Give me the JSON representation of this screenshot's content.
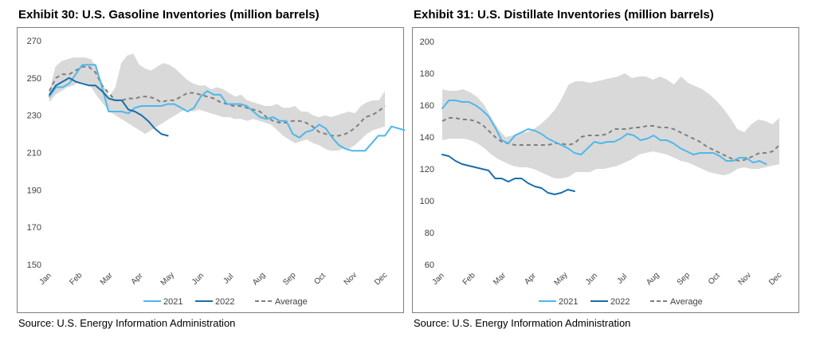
{
  "colors": {
    "series_2021": "#4db8ec",
    "series_2022": "#1a6ea8",
    "average": "#7f7f7f",
    "range_band": "#d9d9d9"
  },
  "exhibits": [
    {
      "title": "Exhibit 30: U.S. Gasoline Inventories (million barrels)",
      "source": "Source: U.S. Energy Information Administration"
    },
    {
      "title": "Exhibit 31: U.S. Distillate Inventories (million barrels)",
      "source": "Source: U.S. Energy Information Administration"
    }
  ],
  "chart_data": [
    {
      "type": "line",
      "title": "Exhibit 30: U.S. Gasoline Inventories (million barrels)",
      "x_categories": [
        "Jan",
        "Feb",
        "Mar",
        "Apr",
        "May",
        "Jun",
        "Jul",
        "Aug",
        "Sep",
        "Oct",
        "Nov",
        "Dec"
      ],
      "ylim": [
        150,
        270
      ],
      "yticks": [
        150,
        170,
        190,
        210,
        230,
        250,
        270
      ],
      "legend_position": "bottom",
      "grid": false,
      "band": {
        "upper": [
          243,
          256,
          259,
          260,
          261,
          261,
          261,
          260,
          254,
          246,
          240,
          245,
          258,
          262,
          263,
          257,
          255,
          254,
          256,
          258,
          257,
          255,
          252,
          249,
          247,
          246,
          246,
          244,
          245,
          244,
          242,
          240,
          241,
          238,
          237,
          236,
          235,
          235,
          236,
          234,
          234,
          235,
          232,
          232,
          230,
          229,
          230,
          229,
          230,
          231,
          232,
          231,
          235,
          237,
          238,
          238,
          243
        ],
        "lower": [
          237,
          241,
          243,
          245,
          246,
          248,
          247,
          245,
          240,
          236,
          232,
          230,
          228,
          226,
          224,
          222,
          220,
          222,
          224,
          226,
          228,
          230,
          232,
          233,
          232,
          233,
          232,
          231,
          230,
          229,
          229,
          228,
          228,
          227,
          228,
          227,
          226,
          225,
          222,
          219,
          217,
          215,
          216,
          217,
          215,
          214,
          212,
          211,
          211,
          212,
          212,
          214,
          217,
          220,
          222,
          223,
          224
        ]
      },
      "series": [
        {
          "name": "2021",
          "color": "#4db8ec",
          "start": 0,
          "values": [
            240,
            245,
            245,
            247,
            252,
            257,
            257,
            257,
            245,
            232,
            232,
            232,
            231,
            234,
            235,
            235,
            235,
            235,
            236,
            236,
            234,
            232,
            234,
            240,
            243,
            241,
            241,
            236,
            236,
            236,
            235,
            232,
            229,
            228,
            229,
            227,
            227,
            220,
            218,
            221,
            222,
            225,
            223,
            218,
            214,
            212,
            211,
            211,
            211,
            215,
            219,
            219,
            224,
            223,
            222
          ]
        },
        {
          "name": "2022",
          "color": "#1a6ea8",
          "start": 0,
          "values": [
            241,
            246,
            248,
            250,
            248,
            247,
            246,
            246,
            243,
            239,
            238,
            238,
            233,
            232,
            230,
            227,
            223,
            220,
            219
          ]
        },
        {
          "name": "Average",
          "color": "#7f7f7f",
          "dashed": true,
          "start": 0,
          "values": [
            243,
            250,
            252,
            252,
            254,
            256,
            256,
            253,
            246,
            242,
            238,
            238,
            239,
            239,
            240,
            240,
            239,
            237,
            238,
            238,
            240,
            242,
            242,
            241,
            240,
            239,
            237,
            236,
            235,
            235,
            234,
            233,
            232,
            229,
            227,
            226,
            226,
            227,
            227,
            226,
            224,
            221,
            220,
            219,
            219,
            220,
            222,
            225,
            229,
            230,
            232,
            235
          ]
        }
      ],
      "legend": [
        "2021",
        "2022",
        "Average"
      ]
    },
    {
      "type": "line",
      "title": "Exhibit 31: U.S. Distillate Inventories (million barrels)",
      "x_categories": [
        "Jan",
        "Feb",
        "Mar",
        "Apr",
        "May",
        "Jun",
        "Jul",
        "Aug",
        "Sep",
        "Oct",
        "Nov",
        "Dec"
      ],
      "ylim": [
        60,
        200
      ],
      "yticks": [
        60,
        80,
        100,
        120,
        140,
        160,
        180,
        200
      ],
      "legend_position": "bottom",
      "grid": false,
      "band": {
        "upper": [
          170,
          169,
          169,
          170,
          168,
          165,
          160,
          152,
          145,
          140,
          141,
          143,
          143,
          145,
          148,
          152,
          157,
          164,
          173,
          175,
          175,
          174,
          175,
          176,
          177,
          178,
          180,
          177,
          178,
          178,
          176,
          178,
          176,
          173,
          178,
          174,
          172,
          170,
          167,
          163,
          158,
          152,
          145,
          143,
          148,
          151,
          150,
          148,
          152
        ],
        "lower": [
          138,
          139,
          139,
          139,
          138,
          136,
          133,
          129,
          126,
          124,
          122,
          121,
          121,
          120,
          118,
          116,
          114,
          114,
          115,
          118,
          118,
          118,
          120,
          120,
          121,
          122,
          124,
          126,
          129,
          130,
          131,
          130,
          129,
          127,
          125,
          124,
          122,
          120,
          118,
          117,
          116,
          117,
          120,
          121,
          120,
          120,
          121,
          122,
          123
        ]
      },
      "series": [
        {
          "name": "2021",
          "color": "#4db8ec",
          "start": 0,
          "values": [
            158,
            163,
            163,
            162,
            162,
            160,
            157,
            153,
            146,
            138,
            136,
            141,
            143,
            145,
            144,
            142,
            139,
            137,
            135,
            133,
            130,
            129,
            133,
            137,
            136,
            137,
            137,
            139,
            142,
            141,
            138,
            139,
            141,
            138,
            138,
            136,
            133,
            131,
            129,
            130,
            130,
            130,
            128,
            125,
            125,
            127,
            127,
            124,
            125,
            123
          ]
        },
        {
          "name": "2022",
          "color": "#1a6ea8",
          "start": 0,
          "values": [
            129,
            128,
            125,
            123,
            122,
            121,
            120,
            119,
            114,
            114,
            112,
            114,
            114,
            111,
            109,
            108,
            105,
            104,
            105,
            107,
            106
          ]
        },
        {
          "name": "Average",
          "color": "#7f7f7f",
          "dashed": true,
          "start": 0,
          "values": [
            150,
            152,
            152,
            151,
            151,
            150,
            148,
            144,
            140,
            137,
            136,
            135,
            135,
            135,
            135,
            135,
            135,
            136,
            136,
            135,
            136,
            140,
            141,
            141,
            141,
            142,
            145,
            145,
            145,
            146,
            146,
            147,
            147,
            146,
            146,
            145,
            143,
            141,
            139,
            137,
            134,
            132,
            130,
            128,
            126,
            125,
            126,
            128,
            130,
            130,
            131,
            135
          ]
        }
      ],
      "legend": [
        "2021",
        "2022",
        "Average"
      ]
    }
  ]
}
